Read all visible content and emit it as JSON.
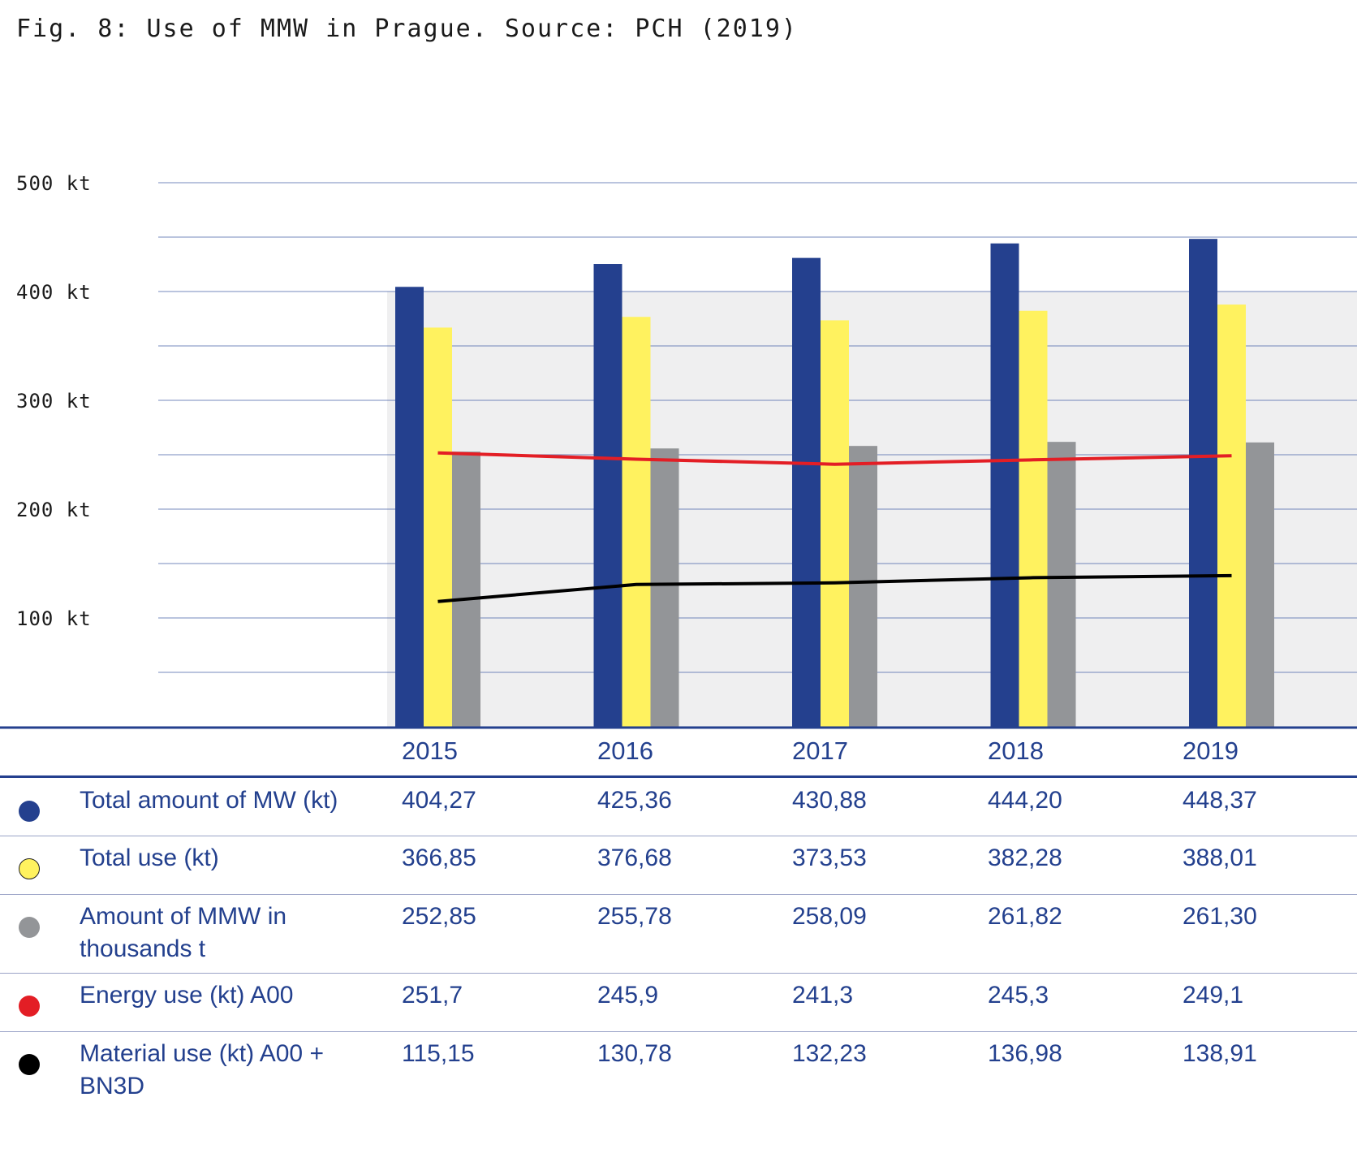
{
  "title": "Fig. 8: Use of MMW in Prague. Source: PCH (2019)",
  "colors": {
    "total_mw": "#24408e",
    "total_use": "#fff25f",
    "mmw": "#939598",
    "energy": "#e31e25",
    "material": "#000000",
    "axis_text": "#23408e",
    "gridline": "#3b57a3",
    "plot_band": "#efeff0"
  },
  "chart_data": {
    "type": "bar",
    "categories": [
      "2015",
      "2016",
      "2017",
      "2018",
      "2019"
    ],
    "y_tick_labels": [
      "500 kt",
      "400 kt",
      "300 kt",
      "200 kt",
      "100 kt"
    ],
    "y_ticks": [
      500,
      400,
      300,
      200,
      100
    ],
    "ylim": [
      0,
      500
    ],
    "gridline_step": 50,
    "grid": true,
    "series": [
      {
        "name": "Total amount of MW (kt)",
        "type": "bar",
        "color": "#24408e",
        "values": [
          404.27,
          425.36,
          430.88,
          444.2,
          448.37
        ],
        "labels": [
          "404,27",
          "425,36",
          "430,88",
          "444,20",
          "448,37"
        ]
      },
      {
        "name": "Total use (kt)",
        "type": "bar",
        "color": "#fff25f",
        "values": [
          366.85,
          376.68,
          373.53,
          382.28,
          388.01
        ],
        "labels": [
          "366,85",
          "376,68",
          "373,53",
          "382,28",
          "388,01"
        ]
      },
      {
        "name": "Amount of MMW in thousands t",
        "type": "bar",
        "color": "#939598",
        "values": [
          252.85,
          255.78,
          258.09,
          261.82,
          261.3
        ],
        "labels": [
          "252,85",
          "255,78",
          "258,09",
          "261,82",
          "261,30"
        ]
      },
      {
        "name": "Energy use (kt) A00",
        "type": "line",
        "color": "#e31e25",
        "values": [
          251.7,
          245.9,
          241.3,
          245.3,
          249.1
        ],
        "labels": [
          "251,7",
          "245,9",
          "241,3",
          "245,3",
          "249,1"
        ]
      },
      {
        "name": "Material use (kt) A00 + BN3D",
        "type": "line",
        "color": "#000000",
        "values": [
          115.15,
          130.78,
          132.23,
          136.98,
          138.91
        ],
        "labels": [
          "115,15",
          "130,78",
          "132,23",
          "136,98",
          "138,91"
        ]
      }
    ]
  }
}
